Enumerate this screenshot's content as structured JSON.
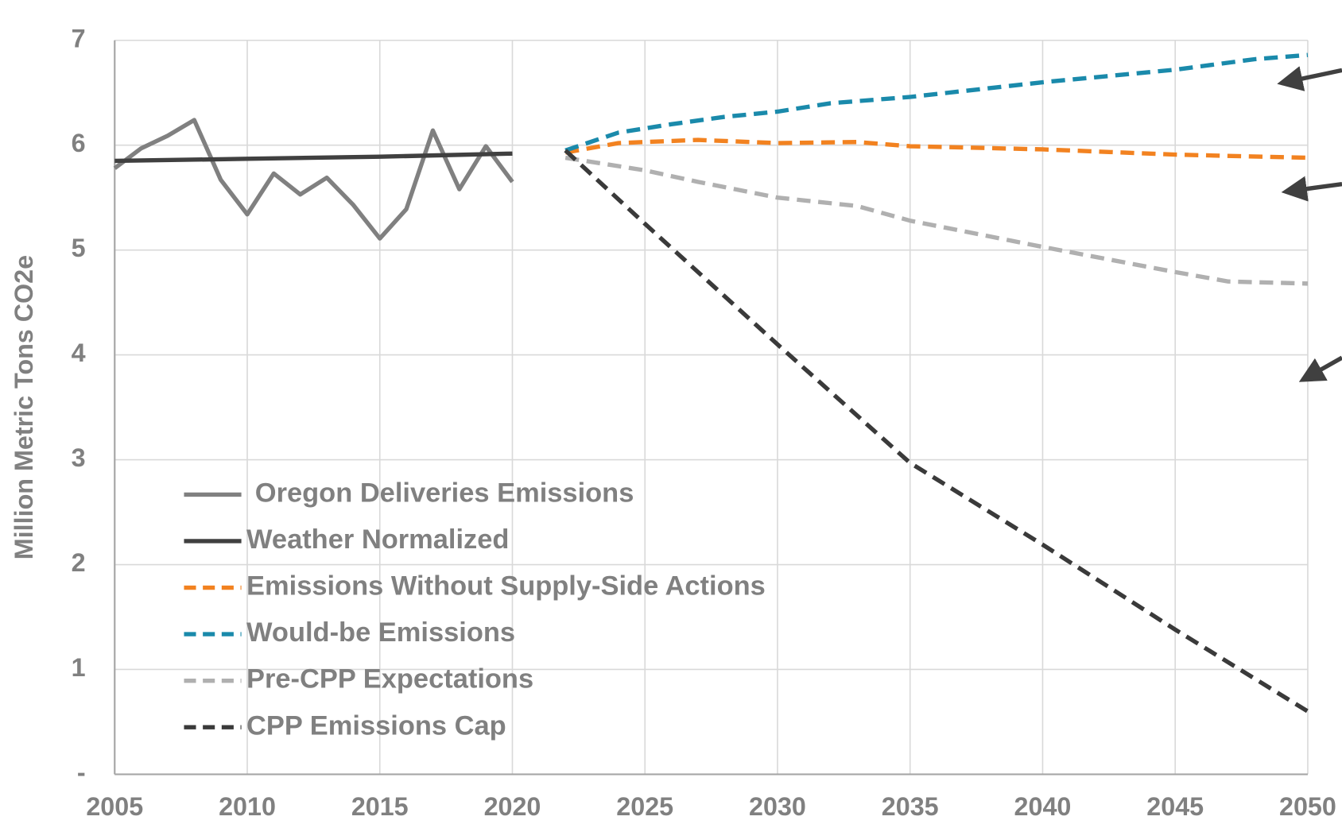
{
  "chart_data": {
    "type": "line",
    "y_label": "Million Metric Tons CO2e",
    "xlim": [
      2005,
      2050
    ],
    "xticks": [
      2005,
      2010,
      2015,
      2020,
      2025,
      2030,
      2035,
      2040,
      2045,
      2050
    ],
    "ylim": [
      0,
      7
    ],
    "yticks": [
      {
        "value": 0,
        "label": "-"
      },
      1,
      2,
      3,
      4,
      5,
      6,
      7
    ],
    "grid": true,
    "legend": "lower left",
    "series": [
      {
        "name": "Oregon Deliveries Emissions",
        "color": "#808080",
        "dashed": false,
        "x": [
          2005,
          2006,
          2007,
          2008,
          2009,
          2010,
          2011,
          2012,
          2013,
          2014,
          2015,
          2016,
          2017,
          2018,
          2019,
          2020
        ],
        "values": [
          5.78,
          5.97,
          6.09,
          6.24,
          5.67,
          5.34,
          5.73,
          5.53,
          5.69,
          5.43,
          5.11,
          5.39,
          6.14,
          5.58,
          5.99,
          5.65
        ]
      },
      {
        "name": "Weather Normalized",
        "color": "#404040",
        "dashed": false,
        "x": [
          2005,
          2010,
          2015,
          2020
        ],
        "values": [
          5.85,
          5.87,
          5.89,
          5.92
        ]
      },
      {
        "name": "Emissions Without Supply-Side Actions",
        "color": "#f28220",
        "dashed": true,
        "x": [
          2022,
          2024,
          2027,
          2030,
          2033,
          2035,
          2040,
          2045,
          2050
        ],
        "values": [
          5.93,
          6.02,
          6.05,
          6.02,
          6.03,
          5.99,
          5.96,
          5.91,
          5.88
        ]
      },
      {
        "name": "Would-be Emissions",
        "color": "#1a8aab",
        "dashed": true,
        "x": [
          2022,
          2024,
          2026,
          2028,
          2030,
          2032,
          2035,
          2040,
          2045,
          2048,
          2050
        ],
        "values": [
          5.95,
          6.12,
          6.2,
          6.27,
          6.32,
          6.4,
          6.46,
          6.6,
          6.72,
          6.82,
          6.86
        ]
      },
      {
        "name": "Pre-CPP Expectations",
        "color": "#b0b0b0",
        "dashed": true,
        "x": [
          2022,
          2025,
          2027,
          2030,
          2033,
          2035,
          2040,
          2045,
          2047,
          2050
        ],
        "values": [
          5.88,
          5.76,
          5.65,
          5.5,
          5.42,
          5.28,
          5.03,
          4.79,
          4.7,
          4.68
        ]
      },
      {
        "name": "CPP Emissions Cap",
        "color": "#3a3a3a",
        "dashed": true,
        "x": [
          2022,
          2025,
          2030,
          2035,
          2040,
          2045,
          2050
        ],
        "values": [
          5.95,
          5.25,
          4.1,
          2.97,
          2.19,
          1.38,
          0.6
        ]
      }
    ]
  }
}
